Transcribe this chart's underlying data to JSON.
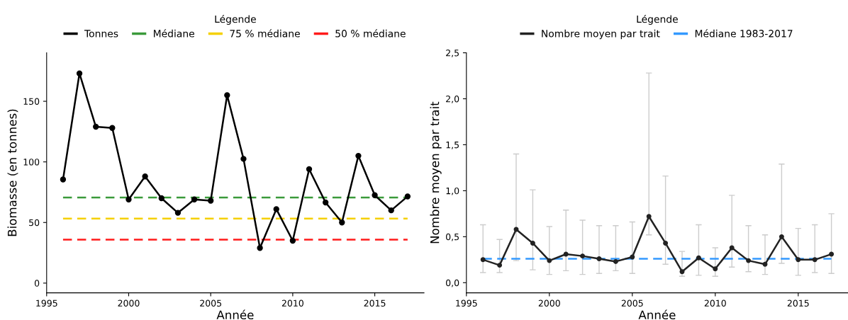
{
  "chart_data": [
    {
      "type": "line",
      "xlabel": "Année",
      "ylabel": "Biomasse (en tonnes)",
      "legend_title": "Légende",
      "legend": "top",
      "grid": false,
      "x": [
        1996,
        1997,
        1998,
        1999,
        2000,
        2001,
        2002,
        2003,
        2004,
        2005,
        2006,
        2007,
        2008,
        2009,
        2010,
        2011,
        2012,
        2013,
        2014,
        2015,
        2016,
        2017
      ],
      "xlim": [
        1995,
        2018
      ],
      "xticks": [
        1995,
        2000,
        2005,
        2010,
        2015
      ],
      "ylim": [
        -8,
        190
      ],
      "yticks": [
        0,
        50,
        100,
        150
      ],
      "series": [
        {
          "name": "Tonnes",
          "color": "#000000",
          "marker": "circle",
          "line_style": "solid",
          "values": [
            85.5,
            173,
            129,
            128,
            69,
            88,
            70,
            58,
            69,
            68,
            155,
            102.5,
            29,
            61,
            35,
            94,
            66.5,
            50,
            105,
            72.5,
            60,
            71.5
          ]
        },
        {
          "name": "Médiane",
          "color": "#3a9a3a",
          "marker": "none",
          "line_style": "dashed",
          "values": [
            70.6,
            70.6,
            70.6,
            70.6,
            70.6,
            70.6,
            70.6,
            70.6,
            70.6,
            70.6,
            70.6,
            70.6,
            70.6,
            70.6,
            70.6,
            70.6,
            70.6,
            70.6,
            70.6,
            70.6,
            70.6,
            70.6
          ]
        },
        {
          "name": "75 % médiane",
          "color": "#f5d000",
          "marker": "none",
          "line_style": "dashed",
          "values": [
            53.3,
            53.3,
            53.3,
            53.3,
            53.3,
            53.3,
            53.3,
            53.3,
            53.3,
            53.3,
            53.3,
            53.3,
            53.3,
            53.3,
            53.3,
            53.3,
            53.3,
            53.3,
            53.3,
            53.3,
            53.3,
            53.3
          ]
        },
        {
          "name": "50 % médiane",
          "color": "#ff1a1a",
          "marker": "none",
          "line_style": "dashed",
          "values": [
            35.8,
            35.8,
            35.8,
            35.8,
            35.8,
            35.8,
            35.8,
            35.8,
            35.8,
            35.8,
            35.8,
            35.8,
            35.8,
            35.8,
            35.8,
            35.8,
            35.8,
            35.8,
            35.8,
            35.8,
            35.8,
            35.8
          ]
        }
      ]
    },
    {
      "type": "line",
      "xlabel": "Année",
      "ylabel": "Nombre moyen par trait",
      "legend_title": "Légende",
      "legend": "top",
      "grid": false,
      "x": [
        1996,
        1997,
        1998,
        1999,
        2000,
        2001,
        2002,
        2003,
        2004,
        2005,
        2006,
        2007,
        2008,
        2009,
        2010,
        2011,
        2012,
        2013,
        2014,
        2015,
        2016,
        2017
      ],
      "xlim": [
        1995,
        2018
      ],
      "xticks": [
        1995,
        2000,
        2005,
        2010,
        2015
      ],
      "ylim": [
        -0.11,
        2.5
      ],
      "yticks": [
        {
          "value": 0,
          "label": "0,0"
        },
        {
          "value": 0.5,
          "label": "0,5"
        },
        {
          "value": 1,
          "label": "1,0"
        },
        {
          "value": 1.5,
          "label": "1,5"
        },
        {
          "value": 2,
          "label": "2,0"
        },
        {
          "value": 2.5,
          "label": "2,5"
        }
      ],
      "series": [
        {
          "name": "Nombre moyen par trait",
          "color": "#222222",
          "marker": "circle",
          "line_style": "solid",
          "values": [
            0.25,
            0.19,
            0.58,
            0.43,
            0.24,
            0.31,
            0.29,
            0.26,
            0.23,
            0.28,
            0.72,
            0.43,
            0.12,
            0.27,
            0.15,
            0.38,
            0.24,
            0.2,
            0.5,
            0.25,
            0.25,
            0.31
          ],
          "errors": [
            [
              0.11,
              0.63
            ],
            [
              0.11,
              0.47
            ],
            [
              0.24,
              1.4
            ],
            [
              0.14,
              1.01
            ],
            [
              0.09,
              0.61
            ],
            [
              0.13,
              0.79
            ],
            [
              0.09,
              0.68
            ],
            [
              0.1,
              0.62
            ],
            [
              0.13,
              0.62
            ],
            [
              0.1,
              0.66
            ],
            [
              0.52,
              2.28
            ],
            [
              0.2,
              1.16
            ],
            [
              0.07,
              0.34
            ],
            [
              0.08,
              0.63
            ],
            [
              0.07,
              0.38
            ],
            [
              0.17,
              0.95
            ],
            [
              0.12,
              0.62
            ],
            [
              0.09,
              0.52
            ],
            [
              0.21,
              1.29
            ],
            [
              0.08,
              0.59
            ],
            [
              0.11,
              0.63
            ],
            [
              0.1,
              0.75
            ]
          ]
        },
        {
          "name": "Médiane 1983-2017",
          "color": "#3399ff",
          "marker": "none",
          "line_style": "dashed",
          "values": [
            0.26,
            0.26,
            0.26,
            0.26,
            0.26,
            0.26,
            0.26,
            0.26,
            0.26,
            0.26,
            0.26,
            0.26,
            0.26,
            0.26,
            0.26,
            0.26,
            0.26,
            0.26,
            0.26,
            0.26,
            0.26,
            0.26
          ]
        }
      ]
    }
  ]
}
